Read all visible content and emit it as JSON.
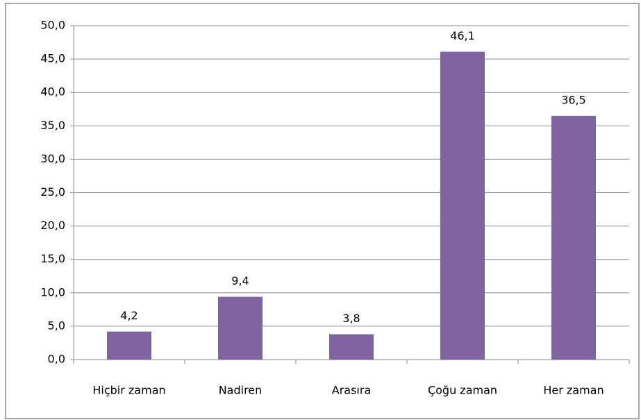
{
  "chart_data": {
    "type": "bar",
    "categories": [
      "Hiçbir zaman",
      "Nadiren",
      "Arasıra",
      "Çoğu zaman",
      "Her zaman"
    ],
    "values": [
      4.2,
      9.4,
      3.8,
      46.1,
      36.5
    ],
    "value_labels": [
      "4,2",
      "9,4",
      "3,8",
      "46,1",
      "36,5"
    ],
    "color": "#8064a2",
    "ylim": [
      0,
      50
    ],
    "yticks": [
      {
        "value": 0,
        "label": "0,0"
      },
      {
        "value": 5,
        "label": "5,0"
      },
      {
        "value": 10,
        "label": "10,0"
      },
      {
        "value": 15,
        "label": "15,0"
      },
      {
        "value": 20,
        "label": "20,0"
      },
      {
        "value": 25,
        "label": "25,0"
      },
      {
        "value": 30,
        "label": "30,0"
      },
      {
        "value": 35,
        "label": "35,0"
      },
      {
        "value": 40,
        "label": "40,0"
      },
      {
        "value": 45,
        "label": "45,0"
      },
      {
        "value": 50,
        "label": "50,0"
      }
    ],
    "grid": true
  }
}
